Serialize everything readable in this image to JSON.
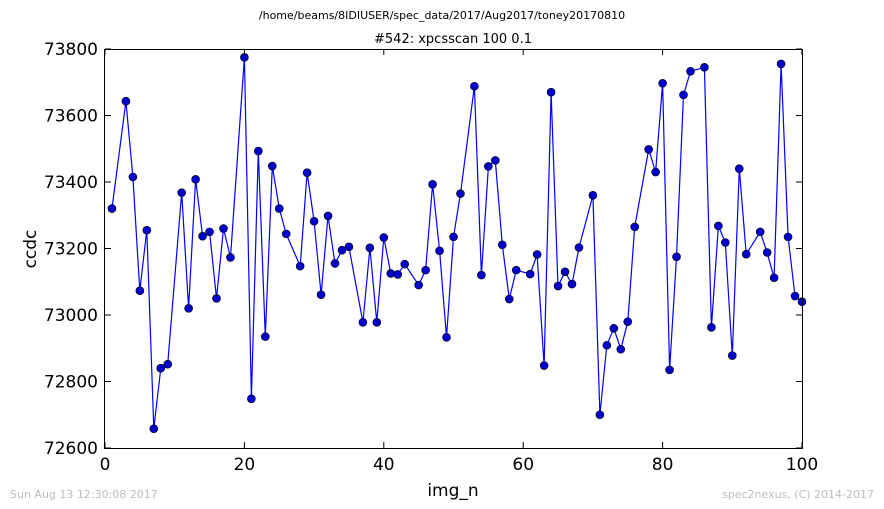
{
  "suptitle": "/home/beams/8IDIUSER/spec_data/2017/Aug2017/toney20170810",
  "footer": {
    "left": "Sun Aug 13 12:30:08 2017",
    "right": "spec2nexus, (C) 2014-2017"
  },
  "colors": {
    "series": "#0000ff",
    "marker_fill": "#0000cc"
  },
  "chart_data": {
    "type": "line",
    "title": "#542: xpcsscan 100 0.1",
    "xlabel": "img_n",
    "ylabel": "ccdc",
    "xlim": [
      0,
      100
    ],
    "ylim": [
      72600,
      73800
    ],
    "xticks": [
      0,
      20,
      40,
      60,
      80,
      100
    ],
    "yticks": [
      72600,
      72800,
      73000,
      73200,
      73400,
      73600,
      73800
    ],
    "x": [
      1,
      3,
      4,
      5,
      6,
      7,
      8,
      9,
      11,
      12,
      13,
      14,
      15,
      16,
      17,
      18,
      20,
      21,
      22,
      23,
      24,
      25,
      26,
      28,
      29,
      30,
      31,
      32,
      33,
      34,
      35,
      37,
      38,
      39,
      40,
      41,
      42,
      43,
      45,
      46,
      47,
      48,
      49,
      50,
      51,
      53,
      54,
      55,
      56,
      57,
      58,
      59,
      61,
      62,
      63,
      64,
      65,
      66,
      67,
      68,
      70,
      71,
      72,
      73,
      74,
      75,
      76,
      78,
      79,
      80,
      81,
      82,
      83,
      84,
      86,
      87,
      88,
      89,
      90,
      91,
      92,
      94,
      95,
      96,
      97,
      98,
      99,
      100
    ],
    "y": [
      73320,
      73643,
      73415,
      73073,
      73255,
      72658,
      72840,
      72852,
      73368,
      73020,
      73408,
      73237,
      73250,
      73050,
      73260,
      73173,
      73775,
      72748,
      73493,
      72935,
      73448,
      73320,
      73244,
      73147,
      73428,
      73282,
      73061,
      73298,
      73155,
      73195,
      73205,
      72978,
      73202,
      72978,
      73233,
      73125,
      73122,
      73153,
      73090,
      73135,
      73393,
      73193,
      72933,
      73235,
      73365,
      73688,
      73120,
      73447,
      73465,
      73211,
      73048,
      73135,
      73123,
      73182,
      72848,
      73670,
      73087,
      73130,
      73093,
      73203,
      73360,
      72700,
      72909,
      72960,
      72897,
      72980,
      73265,
      73498,
      73430,
      73697,
      72835,
      73175,
      73662,
      73733,
      73745,
      72963,
      73268,
      73218,
      72878,
      73440,
      73183,
      73250,
      73188,
      73112,
      73755,
      73235,
      73057,
      73040
    ]
  }
}
